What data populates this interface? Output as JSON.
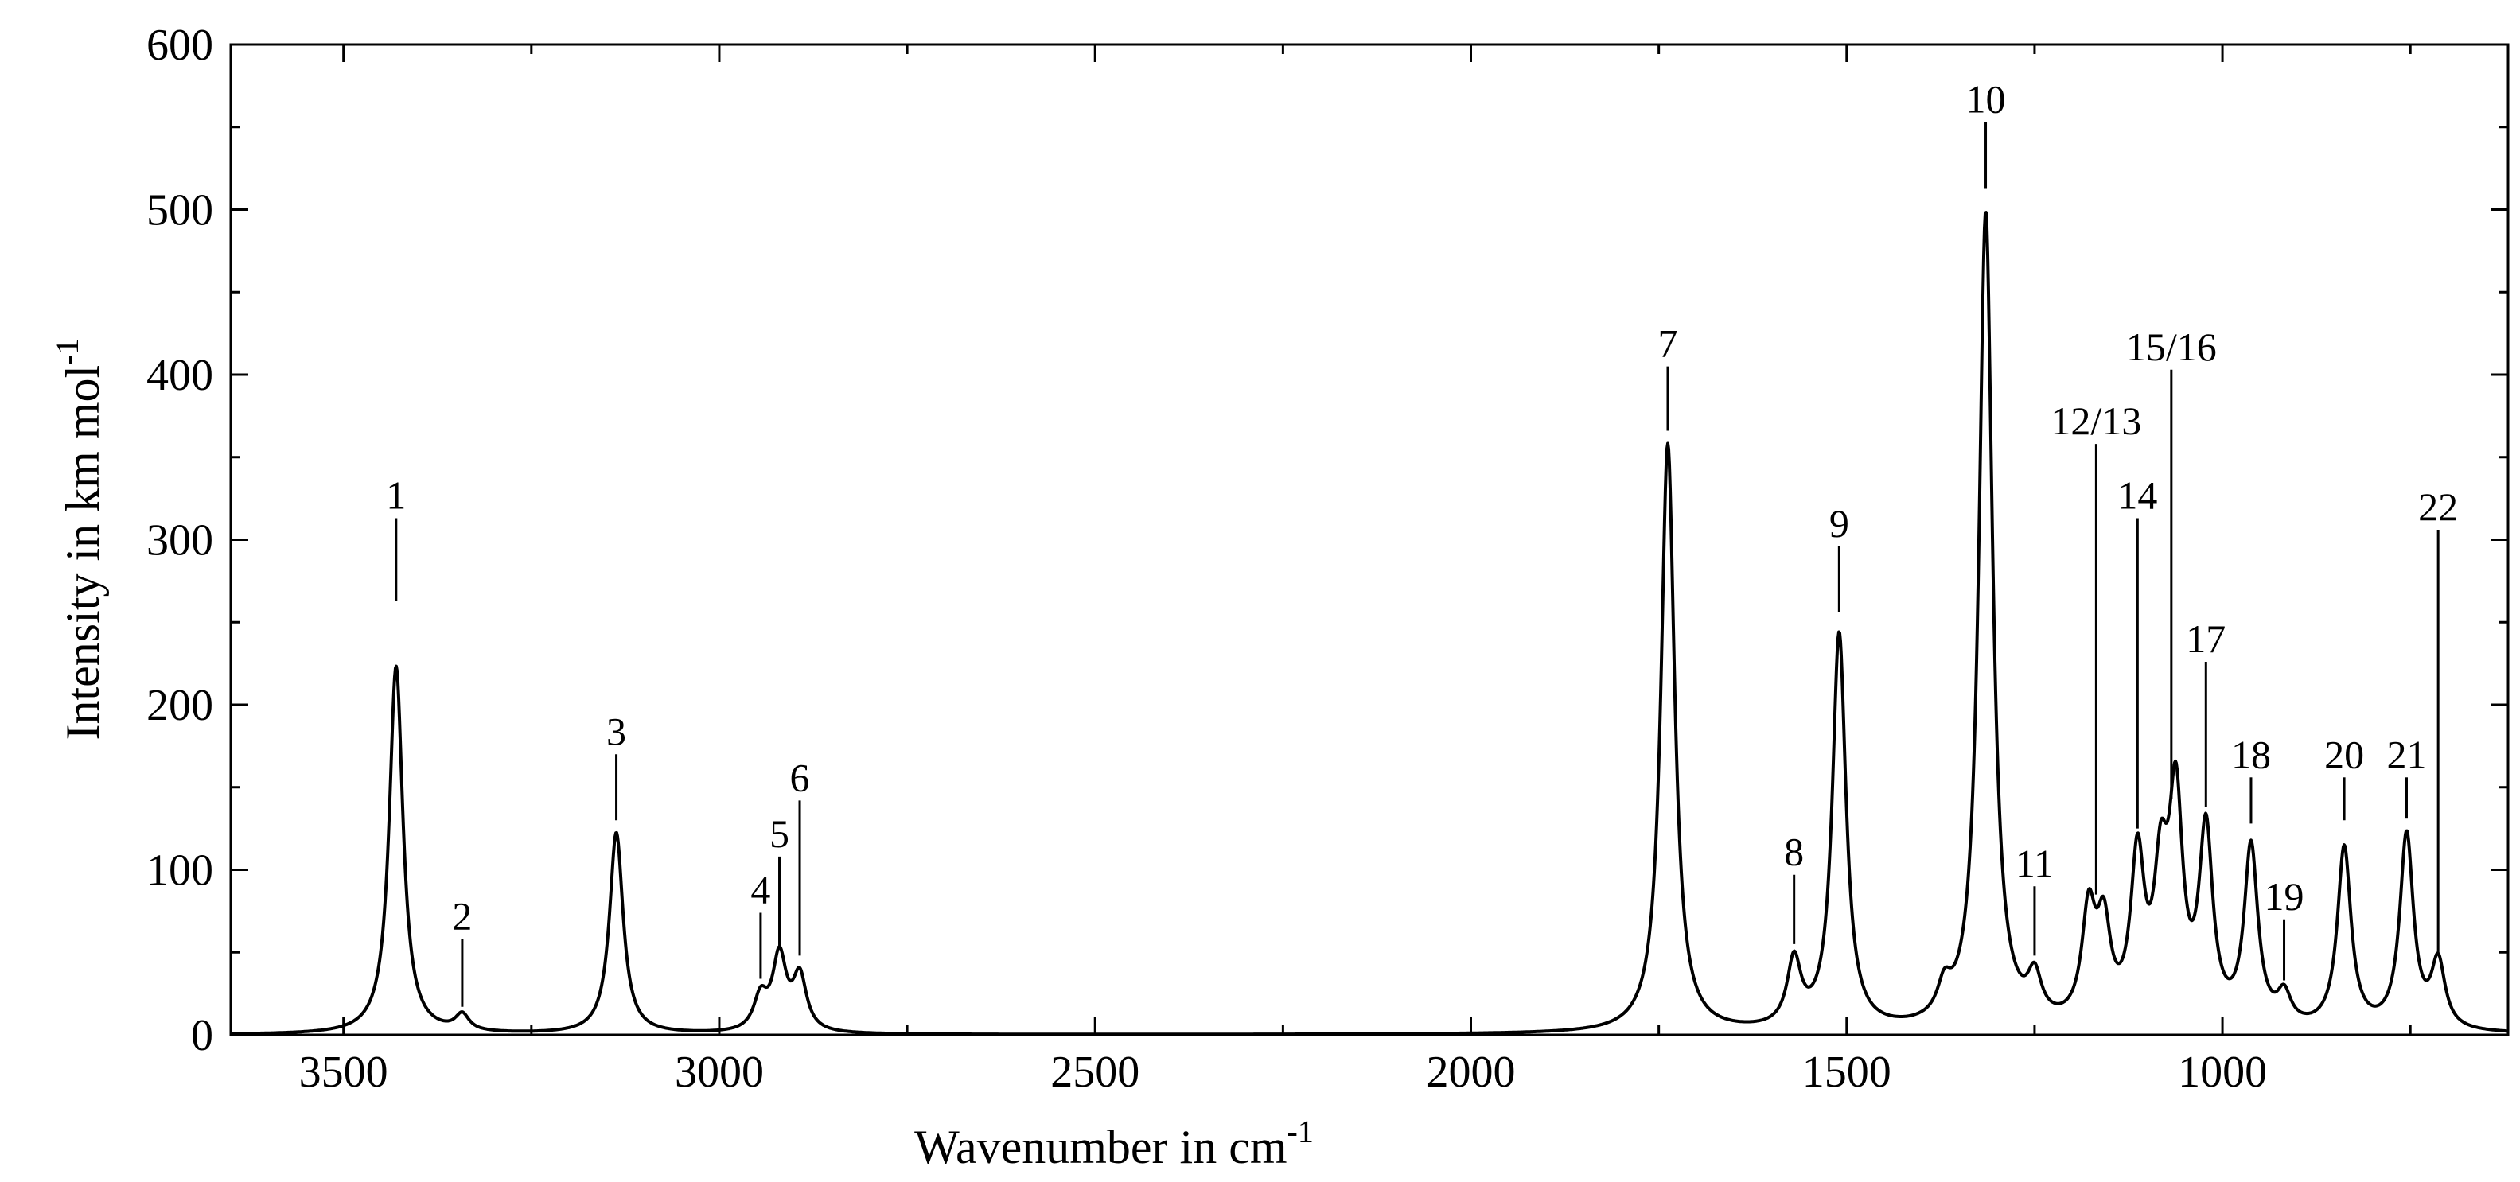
{
  "chart_data": {
    "type": "line",
    "xlabel": "Wavenumber in cm",
    "xlabel_sup": "-1",
    "ylabel": "Intensity in km mol",
    "ylabel_sup": "-1",
    "xlim": [
      3650,
      620
    ],
    "ylim": [
      0,
      600
    ],
    "x_ticks": [
      3500,
      3000,
      2500,
      2000,
      1500,
      1000
    ],
    "x_tick_labels": [
      "3500",
      "3000",
      "2500",
      "2000",
      "1500",
      "1000"
    ],
    "y_ticks": [
      0,
      100,
      200,
      300,
      400,
      500,
      600
    ],
    "y_tick_labels": [
      "0",
      "100",
      "200",
      "300",
      "400",
      "500",
      "600"
    ],
    "grid": false,
    "line_color": "#000000",
    "peak_width": 11,
    "series": [
      {
        "peaks": [
          {
            "x": 3430,
            "y": 223
          },
          {
            "x": 3342,
            "y": 10
          },
          {
            "x": 3137,
            "y": 122
          },
          {
            "x": 2945,
            "y": 20
          },
          {
            "x": 2920,
            "y": 45
          },
          {
            "x": 2893,
            "y": 33
          },
          {
            "x": 1738,
            "y": 357
          },
          {
            "x": 1570,
            "y": 40
          },
          {
            "x": 1510,
            "y": 240
          },
          {
            "x": 1370,
            "y": 18
          },
          {
            "x": 1315,
            "y": 495
          },
          {
            "x": 1250,
            "y": 25
          },
          {
            "x": 1178,
            "y": 65
          },
          {
            "x": 1158,
            "y": 55
          },
          {
            "x": 1113,
            "y": 98
          },
          {
            "x": 1082,
            "y": 80
          },
          {
            "x": 1062,
            "y": 130
          },
          {
            "x": 1022,
            "y": 115
          },
          {
            "x": 962,
            "y": 108
          },
          {
            "x": 918,
            "y": 18
          },
          {
            "x": 838,
            "y": 110
          },
          {
            "x": 755,
            "y": 118
          },
          {
            "x": 713,
            "y": 40
          }
        ]
      }
    ],
    "annotations": [
      {
        "label": "1",
        "x": 3430,
        "top": 313,
        "bottom": 263
      },
      {
        "label": "2",
        "x": 3342,
        "top": 58,
        "bottom": 17
      },
      {
        "label": "3",
        "x": 3137,
        "top": 170,
        "bottom": 130
      },
      {
        "label": "4",
        "x": 2945,
        "top": 74,
        "bottom": 34
      },
      {
        "label": "5",
        "x": 2920,
        "top": 108,
        "bottom": 54
      },
      {
        "label": "6",
        "x": 2893,
        "top": 142,
        "bottom": 48
      },
      {
        "label": "7",
        "x": 1738,
        "top": 405,
        "bottom": 366
      },
      {
        "label": "8",
        "x": 1570,
        "top": 97,
        "bottom": 55
      },
      {
        "label": "9",
        "x": 1510,
        "top": 296,
        "bottom": 256
      },
      {
        "label": "10",
        "x": 1315,
        "top": 553,
        "bottom": 513
      },
      {
        "label": "11",
        "x": 1250,
        "top": 90,
        "bottom": 48
      },
      {
        "label": "12/13",
        "x": 1168,
        "top": 358,
        "bottom": 85
      },
      {
        "label": "14",
        "x": 1113,
        "top": 313,
        "bottom": 125
      },
      {
        "label": "15/16",
        "x": 1068,
        "top": 403,
        "bottom": 143
      },
      {
        "label": "17",
        "x": 1022,
        "top": 226,
        "bottom": 138
      },
      {
        "label": "18",
        "x": 962,
        "top": 156,
        "bottom": 128
      },
      {
        "label": "19",
        "x": 918,
        "top": 70,
        "bottom": 33
      },
      {
        "label": "20",
        "x": 838,
        "top": 156,
        "bottom": 130
      },
      {
        "label": "21",
        "x": 755,
        "top": 156,
        "bottom": 131
      },
      {
        "label": "22",
        "x": 713,
        "top": 306,
        "bottom": 50
      }
    ]
  }
}
